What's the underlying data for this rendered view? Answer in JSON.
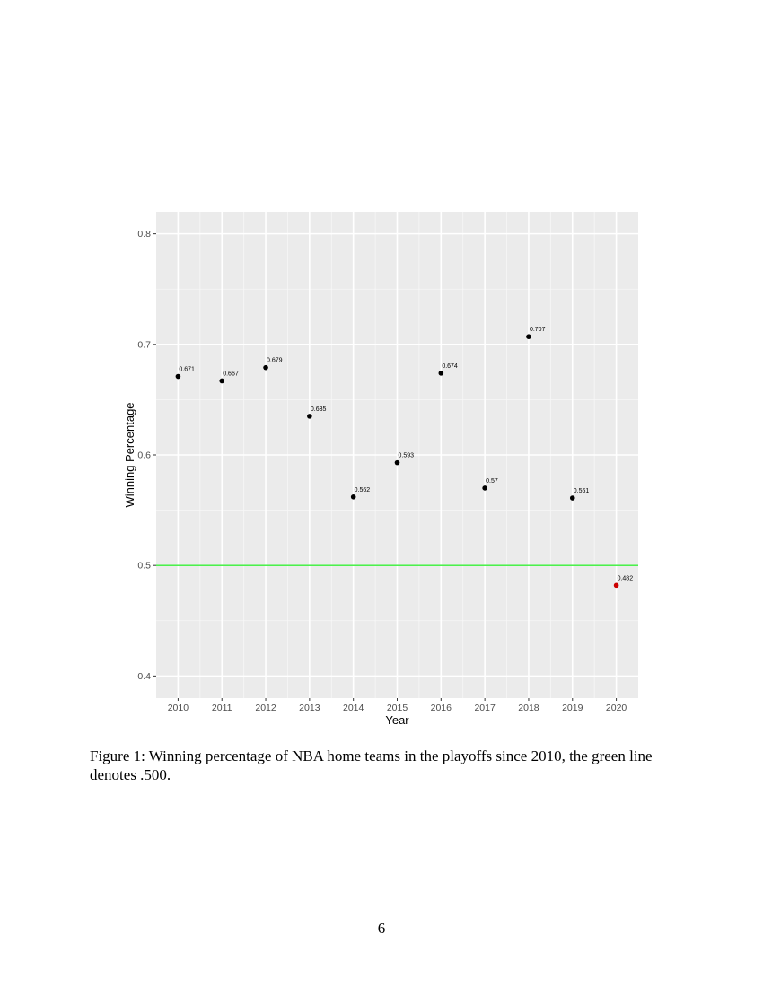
{
  "chart_data": {
    "type": "scatter",
    "title": "",
    "xlabel": "Year",
    "ylabel": "Winning Percentage",
    "x": [
      "2010",
      "2011",
      "2012",
      "2013",
      "2014",
      "2015",
      "2016",
      "2017",
      "2018",
      "2019",
      "2020"
    ],
    "y": [
      0.671,
      0.667,
      0.679,
      0.635,
      0.562,
      0.593,
      0.674,
      0.57,
      0.707,
      0.561,
      0.482
    ],
    "point_labels": [
      "0.671",
      "0.667",
      "0.679",
      "0.635",
      "0.562",
      "0.593",
      "0.674",
      "0.57",
      "0.707",
      "0.561",
      "0.482"
    ],
    "point_colors": [
      "#000000",
      "#000000",
      "#000000",
      "#000000",
      "#000000",
      "#000000",
      "#000000",
      "#000000",
      "#000000",
      "#000000",
      "#cc0000"
    ],
    "yticks": [
      0.4,
      0.5,
      0.6,
      0.7,
      0.8
    ],
    "ytick_labels": [
      "0.4",
      "0.5",
      "0.6",
      "0.7",
      "0.8"
    ],
    "ylim": [
      0.38,
      0.82
    ],
    "reference_line": {
      "y": 0.5,
      "color": "#33ee33"
    },
    "grid": true,
    "panel_background": "#ebebeb"
  },
  "caption": "Figure 1: Winning percentage of NBA home teams in the playoffs since 2010, the green line denotes .500.",
  "page_number": "6"
}
